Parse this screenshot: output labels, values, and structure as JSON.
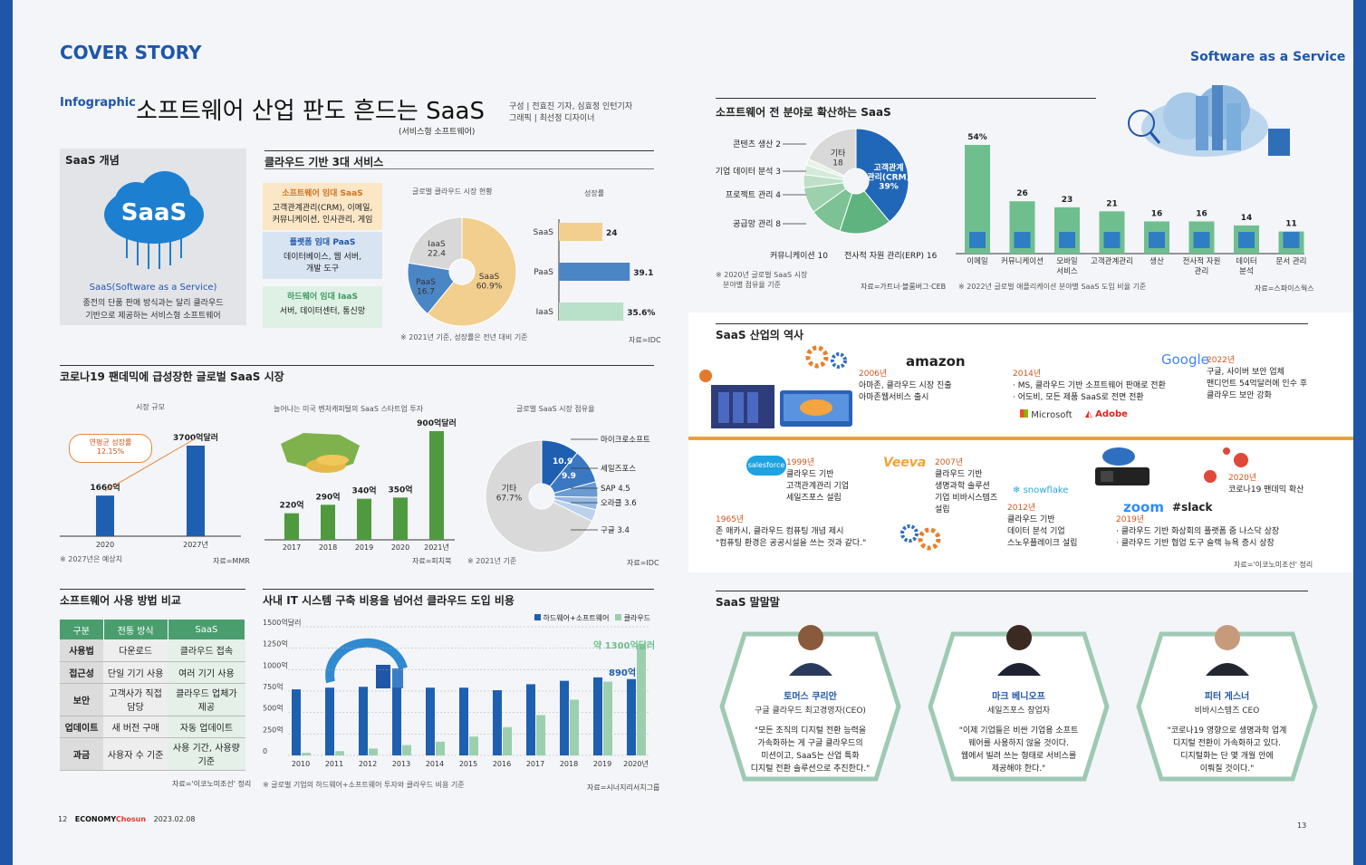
{
  "header": {
    "cover_story": "COVER STORY",
    "infographic": "Infographic",
    "title": "소프트웨어 산업 판도 흔드는 SaaS",
    "subtitle": "(서비스형 소프트웨어)",
    "credit1": "구성 | 전효진 기자, 심효정 인턴기자",
    "credit2": "그래픽 | 최선정 디자이너",
    "right_header": "Software as a Service"
  },
  "saas_concept": {
    "title": "SaaS 개념",
    "logo": "SaaS",
    "name": "SaaS(Software as a Service)",
    "desc1": "종전의 단품 판매 방식과는 달리 클라우드",
    "desc2": "기반으로 제공하는 서비스형 소프트웨어"
  },
  "cloud3": {
    "title": "클라우드 기반 3대 서비스",
    "services": [
      {
        "h": "소프트웨어 임대 SaaS",
        "d1": "고객관계관리(CRM), 이메일,",
        "d2": "커뮤니케이션, 인사관리, 게임"
      },
      {
        "h": "플랫폼 임대 PaaS",
        "d1": "데이터베이스, 웹 서버,",
        "d2": "개발 도구"
      },
      {
        "h": "하드웨어 임대 IaaS",
        "d1": "서버, 데이터센터, 통신망",
        "d2": ""
      }
    ],
    "market_title": "글로벌 클라우드 시장 현황",
    "growth_title": "성장률",
    "note": "※ 2021년 기준, 성장률은 전년 대비 기준",
    "source": "자료=IDC"
  },
  "spread_section": {
    "title": "소프트웨어 전 분야로 확산하는 SaaS",
    "note1": "※ 2020년 글로벌 SaaS 시장",
    "note2": "분야별 점유율 기준",
    "source1": "자료=가트너·블룸버그·CEB",
    "note3": "※ 2022년 글로벌 애플리케이션 분야별 SaaS 도입 비율 기준",
    "source2": "자료=스파이스웍스"
  },
  "covid": {
    "title": "코로나19 팬데믹에 급성장한 글로벌 SaaS 시장",
    "size_title": "시장 규모",
    "cagr_label": "연평균 성장률",
    "cagr": "12.15%",
    "size_note": "※ 2027년은 예상치",
    "size_source": "자료=MMR",
    "vc_title": "늘어나는 미국 벤처캐피털의 SaaS 스타트업 투자",
    "vc_source": "자료=피치북",
    "share_title": "글로벌 SaaS 시장 점유율",
    "share_note": "※ 2021년 기준",
    "share_source": "자료=IDC"
  },
  "compare": {
    "title": "소프트웨어 사용 방법 비교",
    "headers": [
      "구분",
      "전통 방식",
      "SaaS"
    ],
    "rows": [
      [
        "사용법",
        "다운로드",
        "클라우드 접속"
      ],
      [
        "접근성",
        "단일 기기 사용",
        "여러 기기 사용"
      ],
      [
        "보안",
        "고객사가 직접 담당",
        "클라우드 업체가 제공"
      ],
      [
        "업데이트",
        "새 버전 구매",
        "자동 업데이트"
      ],
      [
        "과금",
        "사용자 수 기준",
        "사용 기간, 사용량 기준"
      ]
    ],
    "source": "자료='이코노미조선' 정리"
  },
  "it_cost": {
    "title": "사내 IT 시스템 구축 비용을 넘어선 클라우드 도입 비용",
    "legend_hw": "하드웨어+소프트웨어",
    "legend_cloud": "클라우드",
    "callout_cloud": "약 1300억달러",
    "callout_hw": "890억",
    "note": "※ 글로벌 기업의 하드웨어+소프트웨어 투자와 클라우드 비용 기준",
    "source": "자료=시너지리서치그룹"
  },
  "history": {
    "title": "SaaS 산업의 역사",
    "source": "자료='이코노미조선' 정리",
    "items": [
      {
        "year": "1965년",
        "l1": "존 매카시, 클라우드 컴퓨팅 개념 제시",
        "l2": "\"컴퓨팅 환경은 공공시설을 쓰는 것과 같다.\""
      },
      {
        "year": "1999년",
        "l1": "클라우드 기반",
        "l2": "고객관계관리 기업",
        "l3": "세일즈포스 설립"
      },
      {
        "year": "2006년",
        "l1": "아마존, 클라우드 시장 진출",
        "l2": "아마존웹서비스 출시"
      },
      {
        "year": "2007년",
        "l1": "클라우드 기반",
        "l2": "생명과학 솔루션",
        "l3": "기업 비바시스템즈",
        "l4": "설립"
      },
      {
        "year": "2012년",
        "l1": "클라우드 기반",
        "l2": "데이터 분석 기업",
        "l3": "스노우플레이크 설립"
      },
      {
        "year": "2014년",
        "l1": "· MS, 클라우드 기반 소프트웨어 판매로 전환",
        "l2": "· 어도비, 모든 제품 SaaS로 전면 전환"
      },
      {
        "year": "2019년",
        "l1": "· 클라우드 기반 화상회의 플랫폼 줌 나스닥 상장",
        "l2": "· 클라우드 기반 협업 도구 슬랙 뉴욕 증시 상장"
      },
      {
        "year": "2020년",
        "l1": "코로나19 팬데믹 확산"
      },
      {
        "year": "2022년",
        "l1": "구글, 사이버 보안 업체",
        "l2": "맨디언트 54억달러에 인수 후",
        "l3": "클라우드 보안 강화"
      }
    ],
    "logos": {
      "amazon": "amazon",
      "salesforce": "salesforce",
      "veeva": "Veeva",
      "snowflake": "snowflake",
      "microsoft": "Microsoft",
      "adobe": "Adobe",
      "zoom": "zoom",
      "slack": "slack",
      "google": "Google"
    }
  },
  "quotes": {
    "title": "SaaS 말말말",
    "people": [
      {
        "name": "토머스 쿠리안",
        "role": "구글 클라우드 최고경영자(CEO)",
        "t": [
          "\"모든 조직의 디지털 전환 능력을",
          "가속화하는 게 구글 클라우드의",
          "미션이고, SaaS는 산업 특화",
          "디지털 전환 솔루션으로 추진한다.\""
        ]
      },
      {
        "name": "마크 베니오프",
        "role": "세일즈포스 창업자",
        "t": [
          "\"이제 기업들은 비싼 기업용 소프트",
          "웨어를 사용하지 않을 것이다.",
          "웹에서 빌려 쓰는 형태로 서비스를",
          "제공해야 한다.\""
        ]
      },
      {
        "name": "피터 게스너",
        "role": "비바시스템즈 CEO",
        "t": [
          "\"코로나19 영향으로 생명과학 업계",
          "디지털 전환이 가속화하고 있다.",
          "디지털화는 단 몇 개월 안에",
          "이뤄질 것이다.\""
        ]
      }
    ]
  },
  "footer": {
    "page_left": "12",
    "brand": "ECONOMY",
    "brand2": "Chosun",
    "date": "2023.02.08",
    "page_right": "13"
  },
  "chart_data": [
    {
      "type": "pie",
      "title": "글로벌 클라우드 시장 현황",
      "labels": [
        "SaaS",
        "PaaS",
        "IaaS"
      ],
      "values": [
        60.9,
        16.7,
        22.4
      ],
      "colors": [
        "#f2cf8f",
        "#4a86c5",
        "#d8d8d8"
      ]
    },
    {
      "type": "bar",
      "title": "성장률",
      "categories": [
        "SaaS",
        "PaaS",
        "IaaS"
      ],
      "values": [
        24,
        39.1,
        35.6
      ],
      "value_labels": [
        "24",
        "39.1",
        "35.6%"
      ],
      "colors": [
        "#f2cf8f",
        "#4a86c5",
        "#b9e0c8"
      ]
    },
    {
      "type": "pie",
      "title": "",
      "labels": [
        "기타",
        "고객관계 관리(CRM)",
        "전사적 자원 관리(ERP)",
        "커뮤니케이션",
        "공급망 관리",
        "프로젝트 관리",
        "기업 데이터 분석",
        "콘텐츠 생산"
      ],
      "values": [
        18,
        39,
        16,
        10,
        8,
        4,
        3,
        2
      ],
      "value_labels": [
        "기타\n18",
        "고객관계\n관리(CRM)\n39%",
        "전사적 자원 관리(ERP) 16",
        "커뮤니케이션 10",
        "공급망 관리 8",
        "프로젝트 관리 4",
        "기업 데이터 분석 3",
        "콘텐츠 생산 2"
      ]
    },
    {
      "type": "bar",
      "title": "",
      "categories": [
        "이메일",
        "커뮤니케이션",
        "모바일 서비스",
        "고객관계관리",
        "생산",
        "전사적 자원 관리",
        "데이터 분석",
        "문서 관리"
      ],
      "values": [
        54,
        26,
        23,
        21,
        16,
        16,
        14,
        11
      ],
      "value_labels": [
        "54%",
        "26",
        "23",
        "21",
        "16",
        "16",
        "14",
        "11"
      ]
    },
    {
      "type": "bar",
      "title": "시장 규모",
      "categories": [
        "2020",
        "2027년"
      ],
      "values": [
        1660,
        3700
      ],
      "value_labels": [
        "1660억",
        "3700억달러"
      ]
    },
    {
      "type": "bar",
      "title": "늘어나는 미국 벤처캐피털의 SaaS 스타트업 투자",
      "categories": [
        "2017",
        "2018",
        "2019",
        "2020",
        "2021년"
      ],
      "values": [
        220,
        290,
        340,
        350,
        900
      ],
      "value_labels": [
        "220억",
        "290억",
        "340억",
        "350억",
        "900억달러"
      ]
    },
    {
      "type": "pie",
      "title": "글로벌 SaaS 시장 점유율",
      "labels": [
        "마이크로소프트",
        "세일즈포스",
        "SAP",
        "오라클",
        "구글",
        "기타"
      ],
      "values": [
        10.9,
        9.9,
        4.5,
        3.6,
        3.4,
        67.7
      ],
      "value_labels": [
        "10.9",
        "9.9",
        "SAP 4.5",
        "오라클 3.6",
        "구글 3.4",
        "기타\n67.7%"
      ]
    },
    {
      "type": "bar",
      "title": "사내 IT 시스템 구축 비용을 넘어선 클라우드 도입 비용",
      "categories": [
        "2010",
        "2011",
        "2012",
        "2013",
        "2014",
        "2015",
        "2016",
        "2017",
        "2018",
        "2019",
        "2020년"
      ],
      "series": [
        {
          "name": "하드웨어+소프트웨어",
          "values": [
            770,
            790,
            800,
            790,
            790,
            790,
            760,
            830,
            870,
            910,
            890
          ]
        },
        {
          "name": "클라우드",
          "values": [
            30,
            50,
            80,
            120,
            160,
            220,
            330,
            470,
            650,
            860,
            1300
          ]
        }
      ],
      "yticks": [
        "0",
        "250억",
        "500억",
        "750억",
        "1000억",
        "1250억",
        "1500억달러"
      ],
      "ylim": [
        0,
        1500
      ]
    }
  ]
}
